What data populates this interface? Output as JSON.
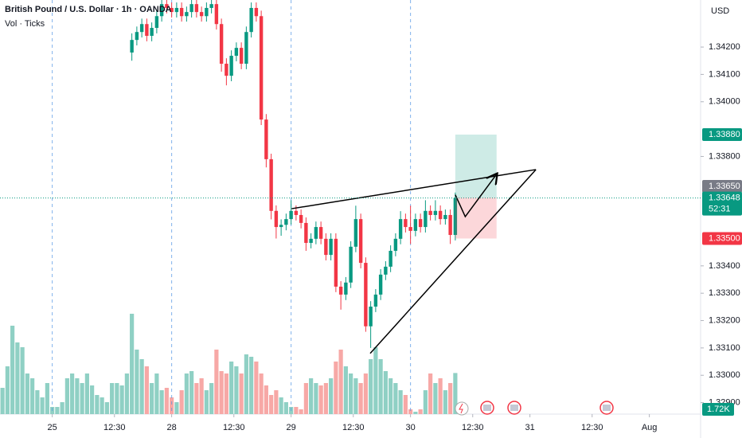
{
  "chart_data": {
    "type": "candlestick",
    "title": "British Pound / U.S. Dollar · 1h · OANDA",
    "subtitle": "Vol · Ticks",
    "currency": "USD",
    "up_color": "#089981",
    "down_color": "#f23645",
    "xlim": [
      -0.5,
      140.3
    ],
    "ylim": [
      1.32858,
      1.34372
    ],
    "volume_ylim": [
      0,
      17.33
    ],
    "xticks": [
      {
        "value": 10,
        "label": "25"
      },
      {
        "value": 22.5,
        "label": "12:30"
      },
      {
        "value": 34,
        "label": "28"
      },
      {
        "value": 46.5,
        "label": "12:30"
      },
      {
        "value": 58,
        "label": "29"
      },
      {
        "value": 70.5,
        "label": "12:30"
      },
      {
        "value": 82,
        "label": "30"
      },
      {
        "value": 94.5,
        "label": "12:30"
      },
      {
        "value": 106,
        "label": "31"
      },
      {
        "value": 118.5,
        "label": "12:30"
      },
      {
        "value": 130,
        "label": "Aug"
      }
    ],
    "session_breaks": [
      10,
      34,
      58,
      82
    ],
    "yticks": [
      {
        "value": 1.342,
        "label": "1.34200"
      },
      {
        "value": 1.341,
        "label": "1.34100"
      },
      {
        "value": 1.34,
        "label": "1.34000"
      },
      {
        "value": 1.338,
        "label": "1.33800"
      },
      {
        "value": 1.334,
        "label": "1.33400"
      },
      {
        "value": 1.333,
        "label": "1.33300"
      },
      {
        "value": 1.332,
        "label": "1.33200"
      },
      {
        "value": 1.331,
        "label": "1.33100"
      },
      {
        "value": 1.33,
        "label": "1.33000"
      },
      {
        "value": 1.329,
        "label": "1.32900"
      }
    ],
    "open": [
      null,
      null,
      null,
      null,
      null,
      null,
      null,
      null,
      null,
      null,
      null,
      null,
      null,
      null,
      null,
      null,
      null,
      null,
      null,
      null,
      null,
      null,
      null,
      null,
      null,
      null,
      1.3418,
      1.34226,
      1.34255,
      1.34284,
      1.34241,
      1.3427,
      1.34313,
      1.34357,
      1.34343,
      1.34328,
      1.34343,
      1.34313,
      1.34328,
      1.34357,
      1.34328,
      1.34313,
      1.34343,
      1.34357,
      1.34284,
      1.34139,
      1.34095,
      1.34168,
      1.34197,
      1.34139,
      1.34255,
      1.34343,
      1.34313,
      1.33935,
      1.3379,
      1.33601,
      1.33542,
      1.3355,
      1.33571,
      1.33601,
      1.33586,
      1.33557,
      1.33484,
      1.33499,
      1.33542,
      1.33499,
      1.3344,
      1.33499,
      1.33324,
      1.33295,
      1.33339,
      1.3347,
      1.33571,
      1.33411,
      1.33179,
      1.33251,
      1.33295,
      1.33368,
      1.33397,
      1.33455,
      1.33499,
      1.33571,
      1.33542,
      1.33528,
      1.33571,
      1.33542,
      1.33601,
      1.33586,
      1.33601,
      1.33571,
      1.33586,
      1.33513
    ],
    "high": [
      null,
      null,
      null,
      null,
      null,
      null,
      null,
      null,
      null,
      null,
      null,
      null,
      null,
      null,
      null,
      null,
      null,
      null,
      null,
      null,
      null,
      null,
      null,
      null,
      null,
      null,
      1.3425,
      1.34275,
      1.34304,
      1.34304,
      1.3429,
      1.34333,
      1.34377,
      1.34377,
      1.34363,
      1.34363,
      1.34363,
      1.34348,
      1.34377,
      1.34377,
      1.34348,
      1.34363,
      1.34377,
      1.34377,
      1.34304,
      1.34159,
      1.34188,
      1.34217,
      1.34217,
      1.34275,
      1.34363,
      1.34363,
      1.34333,
      1.33955,
      1.3381,
      1.33621,
      1.3357,
      1.33591,
      1.3364,
      1.33621,
      1.33606,
      1.33577,
      1.33519,
      1.33562,
      1.33562,
      1.33519,
      1.33519,
      1.33519,
      1.33344,
      1.33359,
      1.3349,
      1.3362,
      1.33591,
      1.33431,
      1.33271,
      1.33315,
      1.33388,
      1.33417,
      1.33475,
      1.33519,
      1.336,
      1.33591,
      1.3362,
      1.33591,
      1.33591,
      1.3364,
      1.33621,
      1.3364,
      1.33621,
      1.33606,
      1.33606,
      1.33668
    ],
    "low": [
      null,
      null,
      null,
      null,
      null,
      null,
      null,
      null,
      null,
      null,
      null,
      null,
      null,
      null,
      null,
      null,
      null,
      null,
      null,
      null,
      null,
      null,
      null,
      null,
      null,
      null,
      1.3415,
      1.34206,
      1.34235,
      1.34221,
      1.34221,
      1.3425,
      1.34293,
      1.34323,
      1.34308,
      1.34308,
      1.34293,
      1.34293,
      1.34308,
      1.34308,
      1.34293,
      1.34293,
      1.34323,
      1.34264,
      1.3411,
      1.3406,
      1.34075,
      1.34148,
      1.34119,
      1.34119,
      1.34235,
      1.34293,
      1.33915,
      1.3376,
      1.3357,
      1.335,
      1.3351,
      1.3353,
      1.33551,
      1.33566,
      1.33537,
      1.33455,
      1.33464,
      1.33479,
      1.33479,
      1.3342,
      1.3342,
      1.33304,
      1.3324,
      1.33275,
      1.33319,
      1.3345,
      1.33391,
      1.33159,
      1.331,
      1.33231,
      1.33275,
      1.33348,
      1.33377,
      1.33435,
      1.33479,
      1.33522,
      1.3348,
      1.33508,
      1.33522,
      1.33522,
      1.33566,
      1.33566,
      1.33551,
      1.33551,
      1.3348,
      1.33493
    ],
    "close": [
      null,
      null,
      null,
      null,
      null,
      null,
      null,
      null,
      null,
      null,
      null,
      null,
      null,
      null,
      null,
      null,
      null,
      null,
      null,
      null,
      null,
      null,
      null,
      null,
      null,
      null,
      1.34226,
      1.34255,
      1.34284,
      1.34241,
      1.3427,
      1.34313,
      1.34357,
      1.34343,
      1.34328,
      1.34343,
      1.34313,
      1.34328,
      1.34357,
      1.34328,
      1.34313,
      1.34343,
      1.34357,
      1.34284,
      1.34139,
      1.34095,
      1.34168,
      1.34197,
      1.34139,
      1.34255,
      1.34343,
      1.34313,
      1.33935,
      1.3379,
      1.33601,
      1.33542,
      1.3355,
      1.33571,
      1.33601,
      1.33586,
      1.33557,
      1.33484,
      1.33499,
      1.33542,
      1.33499,
      1.3344,
      1.33499,
      1.33324,
      1.33295,
      1.33339,
      1.3347,
      1.33571,
      1.33411,
      1.33179,
      1.33251,
      1.33295,
      1.33368,
      1.33397,
      1.33455,
      1.33499,
      1.33571,
      1.33542,
      1.33528,
      1.33571,
      1.33542,
      1.33601,
      1.33586,
      1.33601,
      1.33571,
      1.33586,
      1.33513,
      1.33648
    ],
    "volume": [
      1.1,
      2.0,
      3.7,
      3.0,
      2.8,
      1.7,
      1.5,
      1.0,
      0.7,
      1.3,
      0.3,
      0.3,
      0.5,
      1.5,
      1.7,
      1.5,
      1.3,
      1.7,
      1.2,
      0.8,
      0.7,
      0.5,
      1.3,
      1.3,
      1.2,
      1.7,
      4.2,
      2.7,
      2.3,
      2.0,
      1.3,
      1.7,
      1.0,
      1.1,
      0.7,
      0.5,
      1.0,
      1.7,
      1.8,
      1.3,
      1.5,
      1.0,
      1.3,
      2.7,
      1.8,
      1.7,
      2.2,
      2.0,
      1.7,
      2.5,
      2.4,
      2.2,
      1.7,
      1.2,
      0.8,
      1.0,
      0.7,
      0.5,
      0.3,
      0.3,
      0.2,
      1.3,
      1.5,
      1.3,
      1.2,
      1.3,
      1.5,
      2.2,
      2.7,
      2.0,
      1.7,
      1.5,
      1.3,
      1.7,
      2.3,
      2.8,
      2.3,
      1.8,
      1.5,
      1.3,
      1.0,
      0.8,
      0.2,
      0.1,
      0.2,
      1.0,
      1.7,
      1.3,
      1.5,
      1.0,
      1.3,
      1.72
    ],
    "last_volume_label": "1.72K",
    "last_price_label": "1.33648",
    "countdown": "52:31",
    "position": {
      "x_start": 91,
      "x_end": 99.3,
      "target": {
        "value": 1.3388,
        "label": "1.33880"
      },
      "entry": {
        "value": 1.3365,
        "label": "1.33650"
      },
      "stop": {
        "value": 1.335,
        "label": "1.33500"
      }
    },
    "trendlines": [
      [
        [
          58.1,
          1.33609
        ],
        [
          107.2,
          1.33752
        ]
      ],
      [
        [
          73.9,
          1.3308
        ],
        [
          107.2,
          1.33752
        ]
      ]
    ],
    "arrow": [
      [
        91,
        1.3366
      ],
      [
        93,
        1.3358
      ],
      [
        99.3,
        1.33735
      ]
    ]
  }
}
